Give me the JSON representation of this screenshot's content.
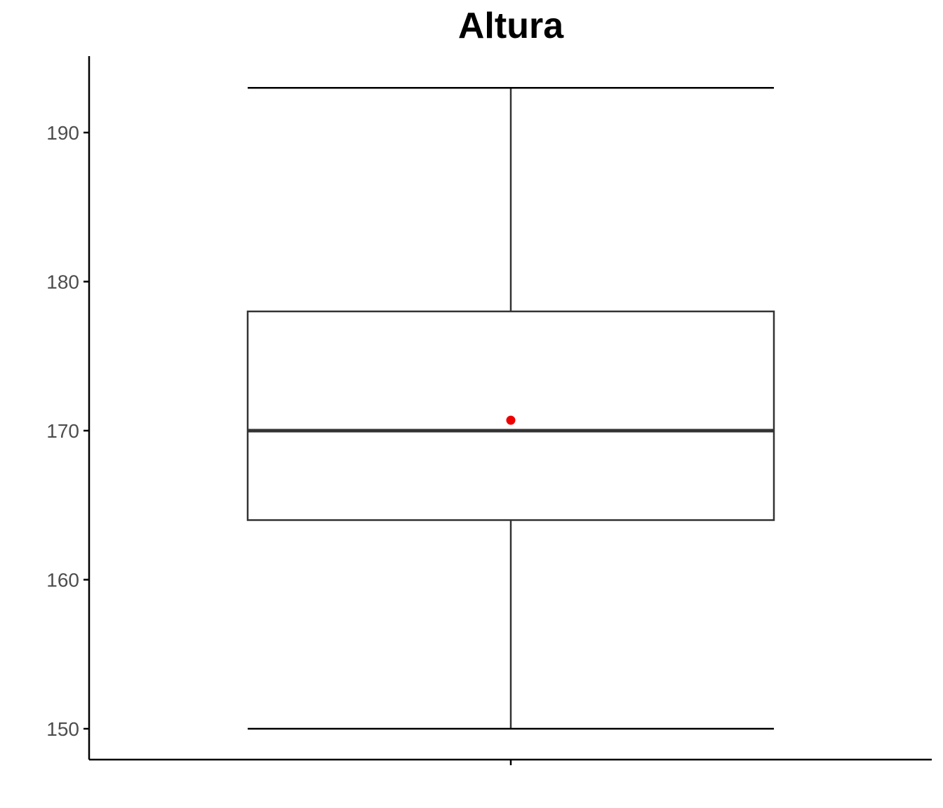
{
  "chart_data": {
    "type": "box",
    "title": "Altura",
    "xlabel": "",
    "ylabel": "",
    "ylim": [
      148,
      195
    ],
    "yticks": [
      150,
      160,
      170,
      180,
      190
    ],
    "ytick_labels": [
      "150",
      "160",
      "170",
      "180",
      "190"
    ],
    "grid": false,
    "box": {
      "min": 150,
      "q1": 164,
      "median": 170,
      "q3": 178,
      "max": 193,
      "mean": 170.7
    },
    "colors": {
      "box_stroke": "#333333",
      "mean_point": "#ee0000",
      "axis": "#000000"
    }
  }
}
